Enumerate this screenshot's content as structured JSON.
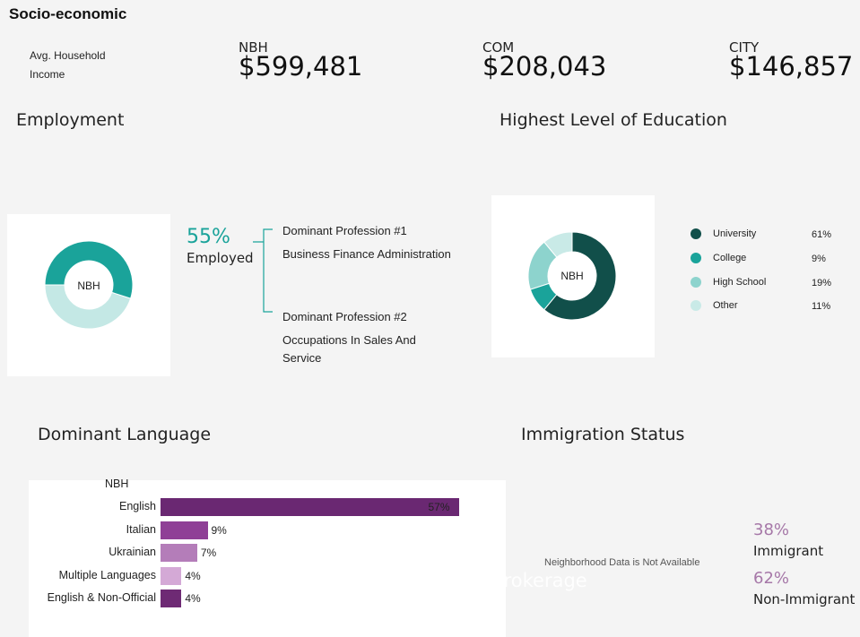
{
  "title": "Socio-economic",
  "income": {
    "label": "Avg. Household Income",
    "nbh_label": "NBH",
    "nbh_value": "$599,481",
    "com_label": "COM",
    "com_value": "$208,043",
    "city_label": "CITY",
    "city_value": "$146,857"
  },
  "employment": {
    "title": "Employment",
    "center_label": "NBH",
    "percent": "55%",
    "percent_label": "Employed",
    "prof1_title": "Dominant Profession #1",
    "prof1_value": "Business Finance Administration",
    "prof2_title": "Dominant Profession #2",
    "prof2_value": "Occupations In Sales And Service",
    "colors": {
      "employed": "#1aa39a",
      "other": "#c4e8e5"
    }
  },
  "education": {
    "title": "Highest Level of Education",
    "center_label": "NBH"
  },
  "language": {
    "title": "Dominant Language",
    "label": "NBH"
  },
  "immigration": {
    "title": "Immigration Status",
    "na_text": "Neighborhood Data is Not Available",
    "immigrant_pct": "38%",
    "immigrant_label": "Immigrant",
    "non_immigrant_pct": "62%",
    "non_immigrant_label": "Non-Immigrant"
  },
  "watermark": "HC REALTY GROUP INC., Brokerage",
  "chart_data": [
    {
      "type": "pie",
      "categories": [
        "Employed",
        "Other"
      ],
      "values": [
        55,
        45
      ],
      "colors": [
        "#1aa39a",
        "#c4e8e5"
      ]
    },
    {
      "type": "pie",
      "title": "Highest Level of Education",
      "categories": [
        "University",
        "College",
        "High School",
        "Other"
      ],
      "values": [
        61,
        9,
        19,
        11
      ],
      "labels": [
        "61%",
        "9%",
        "19%",
        "11%"
      ],
      "colors": [
        "#114f4a",
        "#1aa39a",
        "#8dd3cd",
        "#c9eae7"
      ]
    },
    {
      "type": "bar",
      "title": "Dominant Language",
      "categories": [
        "English",
        "Italian",
        "Ukrainian",
        "Multiple Languages",
        "English & Non-Official"
      ],
      "values": [
        57,
        9,
        7,
        4,
        4
      ],
      "labels": [
        "57%",
        "9%",
        "7%",
        "4%",
        "4%"
      ],
      "colors": [
        "#6a2872",
        "#8f3f96",
        "#b47db9",
        "#d4a9d6",
        "#6e2a74"
      ],
      "xlim": [
        0,
        60
      ]
    }
  ]
}
